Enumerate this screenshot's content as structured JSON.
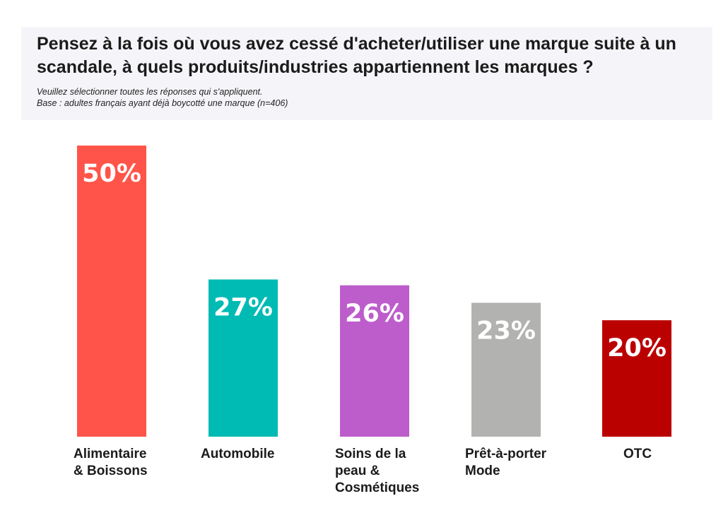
{
  "header": {
    "title": "Pensez à la fois où vous avez cessé d'acheter/utiliser une marque suite à un scandale, à quels produits/industries appartiennent les marques ?",
    "subtitle_line1": "Veuillez sélectionner toutes les réponses qui s'appliquent.",
    "subtitle_line2": "Base : adultes français ayant déjà boycotté une marque (n=406)"
  },
  "chart_data": {
    "type": "bar",
    "title": "Pensez à la fois où vous avez cessé d'acheter/utiliser une marque suite à un scandale, à quels produits/industries appartiennent les marques ?",
    "categories": [
      "Alimentaire\n& Boissons",
      "Automobile",
      "Soins de la\npeau &\nCosmétiques",
      "Prêt-à-porter\nMode",
      "OTC"
    ],
    "values": [
      50,
      27,
      26,
      23,
      20
    ],
    "value_labels": [
      "50%",
      "27%",
      "26%",
      "23%",
      "20%"
    ],
    "colors": [
      "#ff5449",
      "#00bbb4",
      "#bd5dcc",
      "#b2b3b1",
      "#bb0000"
    ],
    "unit": "%",
    "xlabel": "",
    "ylabel": "",
    "ylim": [
      0,
      50
    ],
    "grid": false,
    "legend": "none"
  }
}
